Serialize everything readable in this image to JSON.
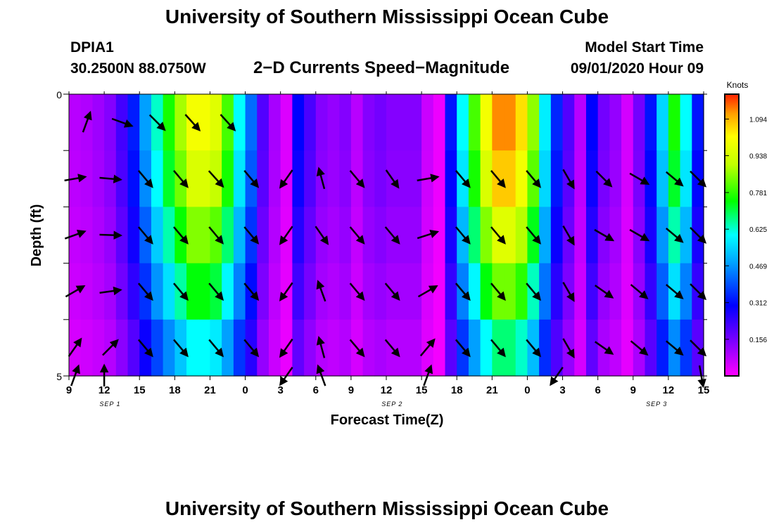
{
  "header": {
    "title": "University of Southern Mississippi Ocean Cube",
    "station": "DPIA1",
    "latlon": "30.2500N 88.0750W",
    "plot_title": "2−D Currents Speed−Magnitude",
    "model_start_label": "Model Start Time",
    "model_start_value": "09/01/2020 Hour 09"
  },
  "footer": {
    "title": "University of Southern Mississippi Ocean Cube"
  },
  "chart_data": {
    "type": "heatmap",
    "xlabel": "Forecast Time(Z)",
    "ylabel": "Depth (ft)",
    "ylim": [
      0,
      5
    ],
    "y_tick_labels": [
      "0",
      "5"
    ],
    "x_tick_labels": [
      "9",
      "12",
      "15",
      "18",
      "21",
      "0",
      "3",
      "6",
      "9",
      "12",
      "15",
      "18",
      "21",
      "0",
      "3",
      "6",
      "9",
      "12",
      "15"
    ],
    "day_labels": [
      "SEP 1",
      "SEP 2",
      "SEP 3"
    ],
    "colorbar": {
      "unit": "Knots",
      "tick_labels": [
        "0.156",
        "0.312",
        "0.469",
        "0.625",
        "0.781",
        "0.938",
        "1.094"
      ]
    },
    "speed_profile_hours": [
      0,
      1,
      2,
      3,
      4,
      5,
      6,
      7,
      8,
      9,
      10,
      11,
      12,
      13,
      14,
      15,
      16,
      17,
      18,
      19,
      20,
      21,
      22,
      23,
      24,
      25,
      26,
      27,
      28,
      29,
      30,
      31,
      32,
      33,
      34,
      35,
      36,
      37,
      38,
      39,
      40,
      41,
      42,
      43,
      44,
      45,
      46,
      47,
      48,
      49,
      50,
      51,
      52,
      53,
      54
    ],
    "speed_profile_knots": [
      0.08,
      0.09,
      0.11,
      0.14,
      0.22,
      0.33,
      0.48,
      0.63,
      0.76,
      0.88,
      1.0,
      1.0,
      0.96,
      0.8,
      0.6,
      0.42,
      0.2,
      0.1,
      0.04,
      0.3,
      0.21,
      0.14,
      0.12,
      0.14,
      0.08,
      0.14,
      0.16,
      0.14,
      0.14,
      0.14,
      0.06,
      0.02,
      0.32,
      0.6,
      0.8,
      1.0,
      1.13,
      1.13,
      1.05,
      0.86,
      0.58,
      0.34,
      0.2,
      0.08,
      0.3,
      0.16,
      0.12,
      0.05,
      0.16,
      0.32,
      0.55,
      0.76,
      0.6,
      0.32,
      0.2
    ],
    "depth_rows": 5,
    "depth_factors": [
      1.0,
      0.95,
      0.85,
      0.74,
      0.6
    ],
    "vectors": [
      {
        "hour": 1.5,
        "d": 0.5,
        "dir": 20
      },
      {
        "hour": 4.5,
        "d": 0.5,
        "dir": 110
      },
      {
        "hour": 7.5,
        "d": 0.5,
        "dir": 135
      },
      {
        "hour": 10.5,
        "d": 0.5,
        "dir": 138
      },
      {
        "hour": 13.5,
        "d": 0.5,
        "dir": 138
      },
      {
        "hour": 0.5,
        "d": 1.5,
        "dir": 80
      },
      {
        "hour": 3.5,
        "d": 1.5,
        "dir": 95
      },
      {
        "hour": 6.5,
        "d": 1.5,
        "dir": 140
      },
      {
        "hour": 9.5,
        "d": 1.5,
        "dir": 140
      },
      {
        "hour": 12.5,
        "d": 1.5,
        "dir": 138
      },
      {
        "hour": 15.5,
        "d": 1.5,
        "dir": 140
      },
      {
        "hour": 18.5,
        "d": 1.5,
        "dir": 215
      },
      {
        "hour": 21.5,
        "d": 1.5,
        "dir": 345
      },
      {
        "hour": 24.5,
        "d": 1.5,
        "dir": 140
      },
      {
        "hour": 27.5,
        "d": 1.5,
        "dir": 145
      },
      {
        "hour": 30.5,
        "d": 1.5,
        "dir": 80
      },
      {
        "hour": 33.5,
        "d": 1.5,
        "dir": 140
      },
      {
        "hour": 36.5,
        "d": 1.5,
        "dir": 140
      },
      {
        "hour": 39.5,
        "d": 1.5,
        "dir": 140
      },
      {
        "hour": 42.5,
        "d": 1.5,
        "dir": 150
      },
      {
        "hour": 45.5,
        "d": 1.5,
        "dir": 135
      },
      {
        "hour": 48.5,
        "d": 1.5,
        "dir": 120
      },
      {
        "hour": 51.5,
        "d": 1.5,
        "dir": 130
      },
      {
        "hour": 53.5,
        "d": 1.5,
        "dir": 135
      },
      {
        "hour": 0.5,
        "d": 2.5,
        "dir": 70
      },
      {
        "hour": 3.5,
        "d": 2.5,
        "dir": 92
      },
      {
        "hour": 6.5,
        "d": 2.5,
        "dir": 140
      },
      {
        "hour": 9.5,
        "d": 2.5,
        "dir": 140
      },
      {
        "hour": 12.5,
        "d": 2.5,
        "dir": 140
      },
      {
        "hour": 15.5,
        "d": 2.5,
        "dir": 140
      },
      {
        "hour": 18.5,
        "d": 2.5,
        "dir": 215
      },
      {
        "hour": 21.5,
        "d": 2.5,
        "dir": 145
      },
      {
        "hour": 24.5,
        "d": 2.5,
        "dir": 140
      },
      {
        "hour": 27.5,
        "d": 2.5,
        "dir": 140
      },
      {
        "hour": 30.5,
        "d": 2.5,
        "dir": 72
      },
      {
        "hour": 33.5,
        "d": 2.5,
        "dir": 140
      },
      {
        "hour": 36.5,
        "d": 2.5,
        "dir": 140
      },
      {
        "hour": 39.5,
        "d": 2.5,
        "dir": 140
      },
      {
        "hour": 42.5,
        "d": 2.5,
        "dir": 150
      },
      {
        "hour": 45.5,
        "d": 2.5,
        "dir": 120
      },
      {
        "hour": 48.5,
        "d": 2.5,
        "dir": 120
      },
      {
        "hour": 51.5,
        "d": 2.5,
        "dir": 130
      },
      {
        "hour": 53.5,
        "d": 2.5,
        "dir": 135
      },
      {
        "hour": 0.5,
        "d": 3.5,
        "dir": 60
      },
      {
        "hour": 3.5,
        "d": 3.5,
        "dir": 82
      },
      {
        "hour": 6.5,
        "d": 3.5,
        "dir": 140
      },
      {
        "hour": 9.5,
        "d": 3.5,
        "dir": 140
      },
      {
        "hour": 12.5,
        "d": 3.5,
        "dir": 140
      },
      {
        "hour": 15.5,
        "d": 3.5,
        "dir": 140
      },
      {
        "hour": 18.5,
        "d": 3.5,
        "dir": 215
      },
      {
        "hour": 21.5,
        "d": 3.5,
        "dir": 340
      },
      {
        "hour": 24.5,
        "d": 3.5,
        "dir": 140
      },
      {
        "hour": 27.5,
        "d": 3.5,
        "dir": 140
      },
      {
        "hour": 30.5,
        "d": 3.5,
        "dir": 60
      },
      {
        "hour": 33.5,
        "d": 3.5,
        "dir": 140
      },
      {
        "hour": 36.5,
        "d": 3.5,
        "dir": 140
      },
      {
        "hour": 39.5,
        "d": 3.5,
        "dir": 140
      },
      {
        "hour": 42.5,
        "d": 3.5,
        "dir": 150
      },
      {
        "hour": 45.5,
        "d": 3.5,
        "dir": 125
      },
      {
        "hour": 48.5,
        "d": 3.5,
        "dir": 130
      },
      {
        "hour": 51.5,
        "d": 3.5,
        "dir": 130
      },
      {
        "hour": 53.5,
        "d": 3.5,
        "dir": 135
      },
      {
        "hour": 0.5,
        "d": 4.5,
        "dir": 35
      },
      {
        "hour": 3.5,
        "d": 4.5,
        "dir": 45
      },
      {
        "hour": 6.5,
        "d": 4.5,
        "dir": 140
      },
      {
        "hour": 9.5,
        "d": 4.5,
        "dir": 140
      },
      {
        "hour": 12.5,
        "d": 4.5,
        "dir": 140
      },
      {
        "hour": 15.5,
        "d": 4.5,
        "dir": 140
      },
      {
        "hour": 18.5,
        "d": 4.5,
        "dir": 215
      },
      {
        "hour": 21.5,
        "d": 4.5,
        "dir": 345
      },
      {
        "hour": 24.5,
        "d": 4.5,
        "dir": 140
      },
      {
        "hour": 27.5,
        "d": 4.5,
        "dir": 140
      },
      {
        "hour": 30.5,
        "d": 4.5,
        "dir": 40
      },
      {
        "hour": 33.5,
        "d": 4.5,
        "dir": 140
      },
      {
        "hour": 36.5,
        "d": 4.5,
        "dir": 140
      },
      {
        "hour": 39.5,
        "d": 4.5,
        "dir": 140
      },
      {
        "hour": 42.5,
        "d": 4.5,
        "dir": 150
      },
      {
        "hour": 45.5,
        "d": 4.5,
        "dir": 125
      },
      {
        "hour": 48.5,
        "d": 4.5,
        "dir": 130
      },
      {
        "hour": 51.5,
        "d": 4.5,
        "dir": 130
      },
      {
        "hour": 53.5,
        "d": 4.5,
        "dir": 135
      },
      {
        "hour": 0.5,
        "d": 5.0,
        "dir": 20
      },
      {
        "hour": 3.0,
        "d": 5.0,
        "dir": 0
      },
      {
        "hour": 18.5,
        "d": 5.0,
        "dir": 215
      },
      {
        "hour": 21.5,
        "d": 5.0,
        "dir": 340
      },
      {
        "hour": 30.5,
        "d": 5.0,
        "dir": 20
      },
      {
        "hour": 41.5,
        "d": 5.0,
        "dir": 215
      },
      {
        "hour": 53.8,
        "d": 5.0,
        "dir": 170
      }
    ]
  }
}
